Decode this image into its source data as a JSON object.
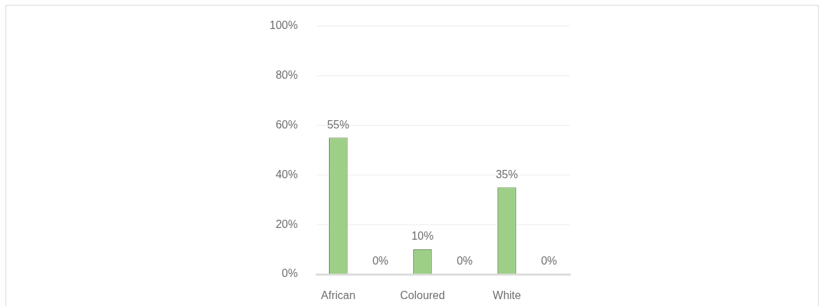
{
  "chart_data": {
    "type": "bar",
    "categories": [
      "African",
      null,
      "Coloured",
      null,
      "White",
      null
    ],
    "values": [
      55,
      0,
      10,
      0,
      35,
      0
    ],
    "color": "#9dcf87",
    "value_labels": [
      "55%",
      "0%",
      "10%",
      "0%",
      "35%",
      "0%"
    ],
    "ylim": [
      0,
      100
    ],
    "yticks": [
      {
        "value": 0,
        "label": "0%"
      },
      {
        "value": 20,
        "label": "20%"
      },
      {
        "value": 40,
        "label": "40%"
      },
      {
        "value": 60,
        "label": "60%"
      },
      {
        "value": 80,
        "label": "80%"
      },
      {
        "value": 100,
        "label": "100%"
      }
    ],
    "grid": "y"
  }
}
